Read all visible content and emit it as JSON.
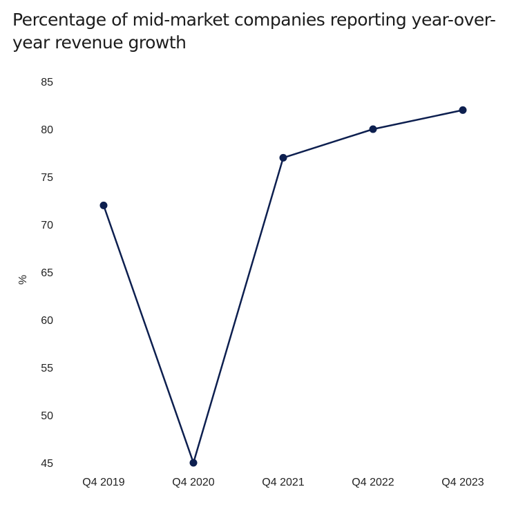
{
  "chart_data": {
    "type": "line",
    "title": "Percentage of mid-market companies reporting year-over-year revenue growth",
    "xlabel": "",
    "ylabel": "%",
    "categories": [
      "Q4 2019",
      "Q4 2020",
      "Q4 2021",
      "Q4 2022",
      "Q4 2023"
    ],
    "series": [
      {
        "values": [
          72,
          45,
          77,
          80,
          82
        ]
      }
    ],
    "ylim": [
      45,
      85
    ],
    "yticks": [
      "85",
      "80",
      "75",
      "70",
      "65",
      "60",
      "55",
      "50",
      "45"
    ],
    "grid": false,
    "legend": "none",
    "colors": {
      "line": "#0d1f4f",
      "marker": "#0d1f4f"
    }
  }
}
